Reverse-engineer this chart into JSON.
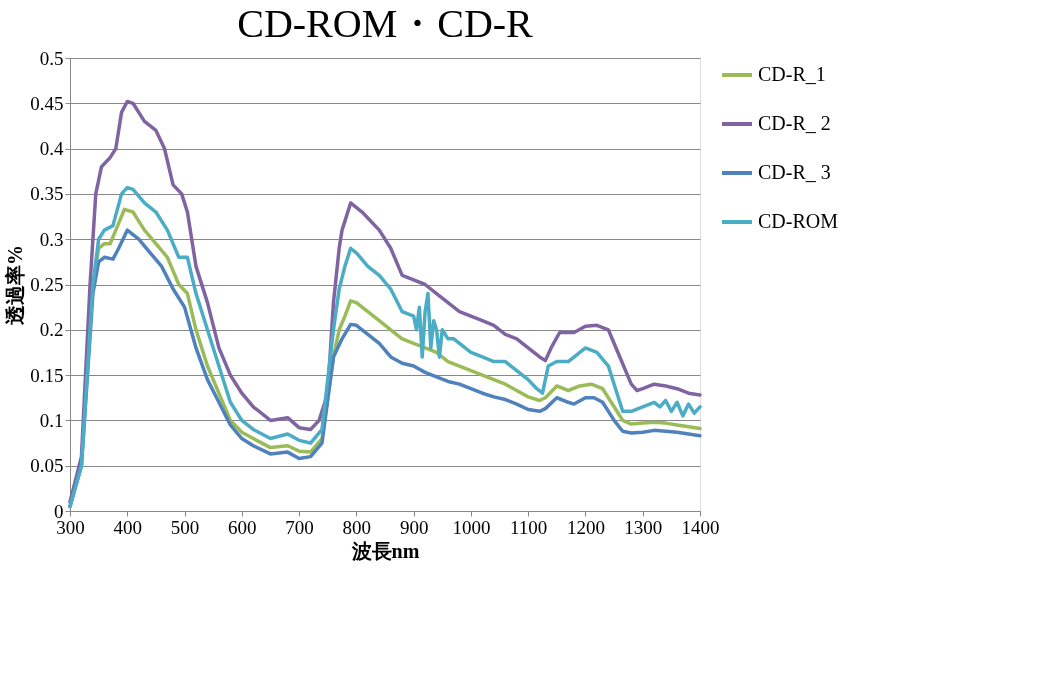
{
  "chart_data": {
    "type": "line",
    "title": "CD-ROM・CD-R",
    "xlabel": "波長nm",
    "ylabel": "透過率%",
    "xlim": [
      300,
      1400
    ],
    "xticks": [
      300,
      400,
      500,
      600,
      700,
      800,
      900,
      1000,
      1100,
      1200,
      1300,
      1400
    ],
    "ylim": [
      0,
      0.5
    ],
    "yticks": [
      0,
      0.05,
      0.1,
      0.15,
      0.2,
      0.25,
      0.3,
      0.35,
      0.4,
      0.45,
      0.5
    ],
    "grid": "y",
    "legend": "right",
    "marker": "none",
    "line_style": "solid",
    "series": [
      {
        "name": "CD-R_1",
        "color": "#9bbb59",
        "x": [
          340,
          350,
          360,
          370,
          380,
          395,
          410,
          430,
          450,
          470,
          490,
          505,
          520,
          540,
          560,
          580,
          600,
          620,
          650,
          680,
          700,
          720,
          740,
          760,
          770,
          780,
          790,
          800,
          820,
          840,
          860,
          880,
          900,
          920,
          940,
          960,
          980,
          1000,
          1020,
          1040,
          1060,
          1080,
          1100,
          1120,
          1130,
          1150,
          1170,
          1190,
          1210,
          1230,
          1250,
          1265,
          1280,
          1300,
          1320,
          1340,
          1360,
          1380,
          1400
        ],
        "values": [
          0.25,
          0.29,
          0.295,
          0.295,
          0.31,
          0.333,
          0.33,
          0.31,
          0.295,
          0.28,
          0.25,
          0.24,
          0.2,
          0.16,
          0.13,
          0.1,
          0.087,
          0.08,
          0.07,
          0.072,
          0.066,
          0.065,
          0.08,
          0.17,
          0.2,
          0.215,
          0.232,
          0.23,
          0.22,
          0.21,
          0.2,
          0.19,
          0.185,
          0.18,
          0.175,
          0.165,
          0.16,
          0.155,
          0.15,
          0.145,
          0.14,
          0.133,
          0.126,
          0.122,
          0.125,
          0.138,
          0.133,
          0.138,
          0.14,
          0.135,
          0.115,
          0.1,
          0.096,
          0.097,
          0.098,
          0.097,
          0.095,
          0.093,
          0.091
        ]
      },
      {
        "name": "CD-R_ 2",
        "color": "#8064a2",
        "x": [
          300,
          320,
          335,
          345,
          355,
          370,
          380,
          390,
          400,
          410,
          430,
          450,
          465,
          480,
          495,
          505,
          520,
          540,
          560,
          580,
          600,
          620,
          650,
          680,
          700,
          720,
          735,
          750,
          760,
          770,
          775,
          790,
          810,
          840,
          860,
          880,
          900,
          920,
          940,
          960,
          980,
          1000,
          1020,
          1040,
          1060,
          1080,
          1100,
          1120,
          1130,
          1140,
          1155,
          1180,
          1200,
          1220,
          1240,
          1260,
          1280,
          1290,
          1300,
          1320,
          1340,
          1360,
          1380,
          1400
        ],
        "values": [
          0.01,
          0.06,
          0.25,
          0.35,
          0.38,
          0.39,
          0.4,
          0.44,
          0.452,
          0.45,
          0.43,
          0.42,
          0.4,
          0.36,
          0.35,
          0.33,
          0.27,
          0.23,
          0.18,
          0.15,
          0.13,
          0.115,
          0.1,
          0.103,
          0.092,
          0.09,
          0.1,
          0.13,
          0.23,
          0.29,
          0.31,
          0.34,
          0.33,
          0.31,
          0.29,
          0.26,
          0.255,
          0.25,
          0.24,
          0.23,
          0.22,
          0.215,
          0.21,
          0.205,
          0.195,
          0.19,
          0.18,
          0.17,
          0.166,
          0.18,
          0.197,
          0.197,
          0.204,
          0.205,
          0.2,
          0.17,
          0.14,
          0.133,
          0.135,
          0.14,
          0.138,
          0.135,
          0.13,
          0.128
        ]
      },
      {
        "name": "CD-R_ 3",
        "color": "#4f81bd",
        "x": [
          300,
          320,
          340,
          350,
          360,
          375,
          385,
          400,
          420,
          440,
          460,
          480,
          500,
          520,
          540,
          560,
          580,
          600,
          620,
          650,
          680,
          700,
          720,
          740,
          760,
          775,
          790,
          800,
          820,
          840,
          860,
          880,
          900,
          920,
          940,
          960,
          980,
          1000,
          1020,
          1040,
          1060,
          1080,
          1100,
          1120,
          1130,
          1150,
          1170,
          1180,
          1200,
          1215,
          1230,
          1250,
          1265,
          1280,
          1300,
          1320,
          1340,
          1360,
          1380,
          1400
        ],
        "values": [
          0.005,
          0.05,
          0.24,
          0.275,
          0.28,
          0.278,
          0.29,
          0.31,
          0.3,
          0.285,
          0.27,
          0.245,
          0.225,
          0.18,
          0.145,
          0.12,
          0.095,
          0.08,
          0.072,
          0.063,
          0.065,
          0.058,
          0.06,
          0.075,
          0.17,
          0.19,
          0.206,
          0.205,
          0.195,
          0.185,
          0.17,
          0.163,
          0.16,
          0.153,
          0.148,
          0.143,
          0.14,
          0.135,
          0.13,
          0.126,
          0.123,
          0.118,
          0.112,
          0.11,
          0.113,
          0.125,
          0.12,
          0.118,
          0.125,
          0.125,
          0.12,
          0.1,
          0.088,
          0.086,
          0.087,
          0.089,
          0.088,
          0.087,
          0.085,
          0.083
        ]
      },
      {
        "name": "CD-ROM",
        "color": "#4bacc6",
        "x": [
          300,
          320,
          340,
          350,
          360,
          375,
          390,
          400,
          410,
          430,
          450,
          470,
          490,
          505,
          520,
          540,
          560,
          580,
          600,
          620,
          650,
          680,
          700,
          720,
          740,
          760,
          770,
          780,
          790,
          800,
          820,
          840,
          860,
          880,
          900,
          905,
          910,
          915,
          920,
          925,
          930,
          935,
          940,
          945,
          950,
          960,
          970,
          980,
          1000,
          1020,
          1040,
          1060,
          1080,
          1100,
          1115,
          1125,
          1135,
          1150,
          1170,
          1200,
          1220,
          1240,
          1255,
          1265,
          1280,
          1300,
          1320,
          1330,
          1340,
          1350,
          1360,
          1370,
          1380,
          1390,
          1400
        ],
        "values": [
          0.005,
          0.05,
          0.25,
          0.3,
          0.31,
          0.315,
          0.35,
          0.357,
          0.355,
          0.34,
          0.33,
          0.31,
          0.28,
          0.28,
          0.24,
          0.2,
          0.16,
          0.12,
          0.1,
          0.09,
          0.08,
          0.085,
          0.078,
          0.075,
          0.09,
          0.2,
          0.245,
          0.27,
          0.29,
          0.285,
          0.27,
          0.26,
          0.245,
          0.22,
          0.215,
          0.2,
          0.225,
          0.17,
          0.22,
          0.24,
          0.18,
          0.21,
          0.2,
          0.17,
          0.2,
          0.19,
          0.19,
          0.185,
          0.175,
          0.17,
          0.165,
          0.165,
          0.155,
          0.145,
          0.135,
          0.13,
          0.16,
          0.165,
          0.165,
          0.18,
          0.175,
          0.16,
          0.13,
          0.11,
          0.11,
          0.115,
          0.12,
          0.115,
          0.122,
          0.11,
          0.12,
          0.105,
          0.118,
          0.108,
          0.115
        ]
      }
    ]
  }
}
